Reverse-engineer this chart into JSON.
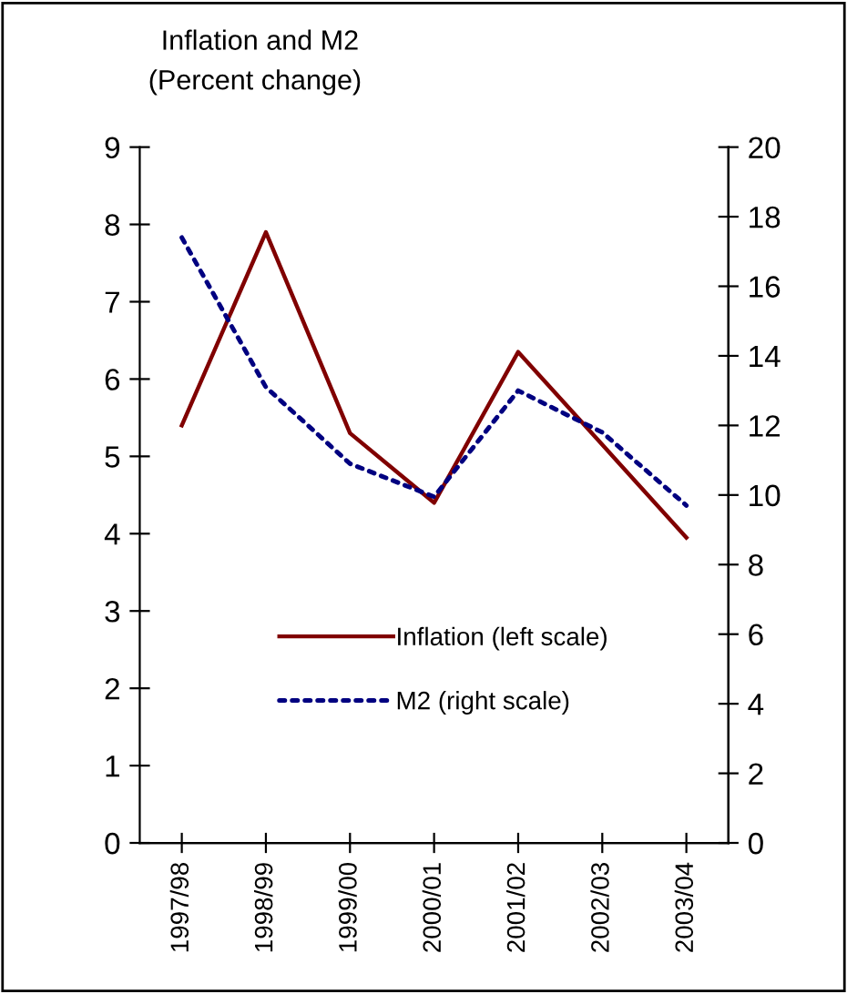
{
  "chart_data": {
    "type": "line",
    "title": "Inflation and M2",
    "subtitle": "(Percent change)",
    "categories": [
      "1997/98",
      "1998/99",
      "1999/00",
      "2000/01",
      "2001/02",
      "2002/03",
      "2003/04"
    ],
    "series": [
      {
        "name": "Inflation (left scale)",
        "color": "#800000",
        "line_style": "solid",
        "values": [
          5.4,
          7.9,
          5.3,
          4.4,
          6.35,
          5.15,
          3.95
        ]
      },
      {
        "name": "M2 (right scale)",
        "color": "#000080",
        "line_style": "dotted",
        "axis": "y2",
        "values": [
          17.4,
          13.1,
          10.9,
          9.95,
          13.0,
          11.8,
          9.7
        ]
      }
    ],
    "ylim": [
      0,
      9
    ],
    "yticks": [
      0,
      1,
      2,
      3,
      4,
      5,
      6,
      7,
      8,
      9
    ],
    "y2lim": [
      0,
      20
    ],
    "y2ticks": [
      0,
      2,
      4,
      6,
      8,
      10,
      12,
      14,
      16,
      18,
      20
    ],
    "grid": false,
    "legend": "bottom",
    "marker": "none"
  }
}
